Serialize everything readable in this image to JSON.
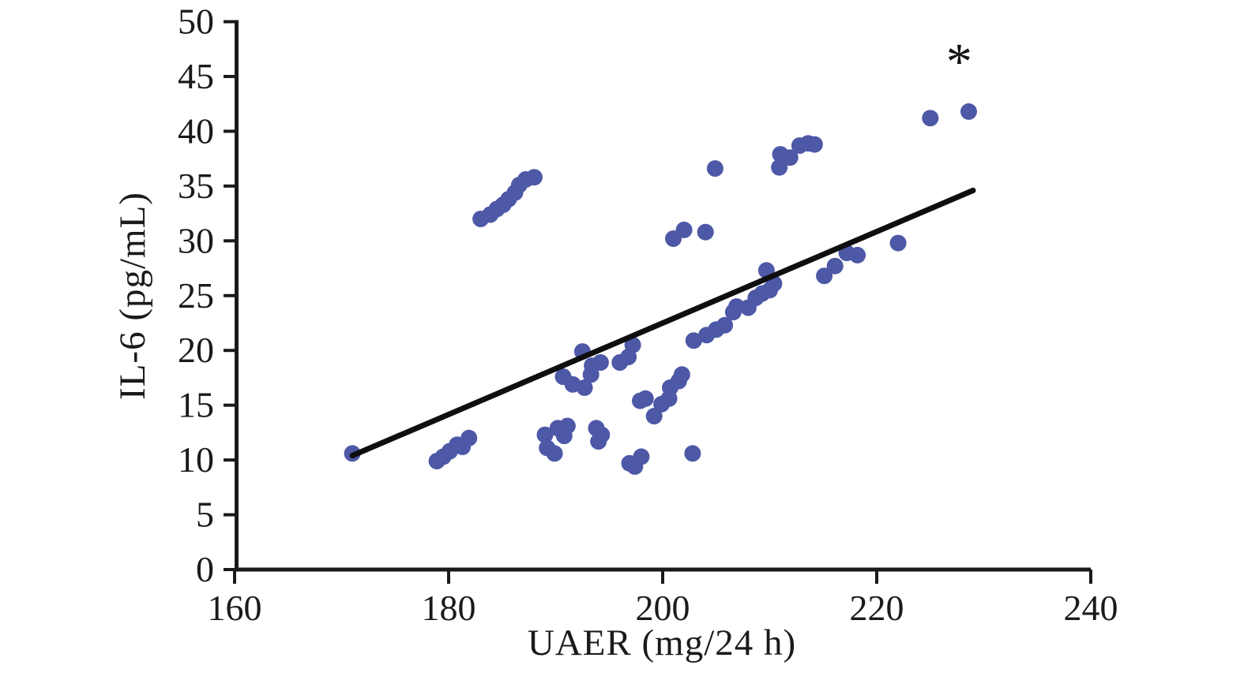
{
  "chart_data": {
    "type": "scatter",
    "title": "",
    "xlabel": "UAER (mg/24 h)",
    "ylabel": "IL-6 (pg/mL)",
    "xlim": [
      160,
      240
    ],
    "ylim": [
      0,
      50
    ],
    "x_ticks": [
      "160",
      "180",
      "200",
      "220",
      "240"
    ],
    "y_ticks": [
      "0",
      "5",
      "10",
      "15",
      "20",
      "25",
      "30",
      "35",
      "40",
      "45",
      "50"
    ],
    "grid": false,
    "legend": "none",
    "marker_color": "#4d58a6",
    "axis_color": "#1a1a1a",
    "trend_line": {
      "x1": 171.0,
      "y1": 10.4,
      "x2": 229.0,
      "y2": 34.6,
      "color": "#0f0f0f"
    },
    "annotation": {
      "text": "*",
      "x": 227.7,
      "y": 46.3
    },
    "points": [
      [
        171.0,
        10.6
      ],
      [
        178.9,
        9.9
      ],
      [
        179.5,
        10.3
      ],
      [
        180.1,
        10.8
      ],
      [
        180.8,
        11.4
      ],
      [
        181.3,
        11.2
      ],
      [
        181.9,
        12.0
      ],
      [
        183.0,
        32.0
      ],
      [
        183.9,
        32.4
      ],
      [
        184.5,
        32.9
      ],
      [
        185.1,
        33.3
      ],
      [
        185.6,
        33.8
      ],
      [
        186.2,
        34.4
      ],
      [
        186.6,
        35.1
      ],
      [
        187.2,
        35.6
      ],
      [
        188.0,
        35.8
      ],
      [
        189.0,
        12.3
      ],
      [
        189.2,
        11.1
      ],
      [
        189.9,
        10.6
      ],
      [
        190.2,
        12.9
      ],
      [
        190.8,
        12.2
      ],
      [
        191.1,
        13.1
      ],
      [
        190.7,
        17.6
      ],
      [
        191.6,
        16.9
      ],
      [
        192.7,
        16.6
      ],
      [
        193.3,
        17.8
      ],
      [
        192.5,
        19.9
      ],
      [
        193.4,
        18.6
      ],
      [
        194.2,
        18.9
      ],
      [
        193.8,
        12.9
      ],
      [
        194.3,
        12.3
      ],
      [
        194.0,
        11.7
      ],
      [
        196.0,
        18.9
      ],
      [
        196.8,
        19.4
      ],
      [
        197.2,
        20.5
      ],
      [
        196.9,
        9.7
      ],
      [
        197.4,
        9.4
      ],
      [
        198.0,
        10.3
      ],
      [
        197.9,
        15.4
      ],
      [
        198.4,
        15.6
      ],
      [
        199.2,
        14.0
      ],
      [
        199.9,
        15.1
      ],
      [
        200.6,
        15.6
      ],
      [
        200.7,
        16.6
      ],
      [
        201.5,
        17.2
      ],
      [
        201.8,
        17.8
      ],
      [
        202.8,
        10.6
      ],
      [
        201.0,
        30.2
      ],
      [
        202.0,
        31.0
      ],
      [
        204.0,
        30.8
      ],
      [
        204.9,
        36.6
      ],
      [
        202.9,
        20.9
      ],
      [
        204.1,
        21.4
      ],
      [
        205.0,
        21.9
      ],
      [
        205.8,
        22.3
      ],
      [
        206.6,
        23.5
      ],
      [
        206.9,
        24.0
      ],
      [
        208.0,
        23.9
      ],
      [
        208.7,
        24.8
      ],
      [
        209.3,
        25.2
      ],
      [
        210.0,
        25.5
      ],
      [
        210.4,
        26.1
      ],
      [
        209.7,
        27.3
      ],
      [
        215.1,
        26.8
      ],
      [
        216.1,
        27.7
      ],
      [
        217.2,
        28.9
      ],
      [
        218.2,
        28.7
      ],
      [
        222.0,
        29.8
      ],
      [
        210.9,
        36.7
      ],
      [
        211.0,
        37.9
      ],
      [
        211.9,
        37.6
      ],
      [
        212.8,
        38.7
      ],
      [
        213.6,
        38.9
      ],
      [
        214.2,
        38.8
      ],
      [
        225.0,
        41.2
      ],
      [
        228.6,
        41.8
      ]
    ]
  }
}
